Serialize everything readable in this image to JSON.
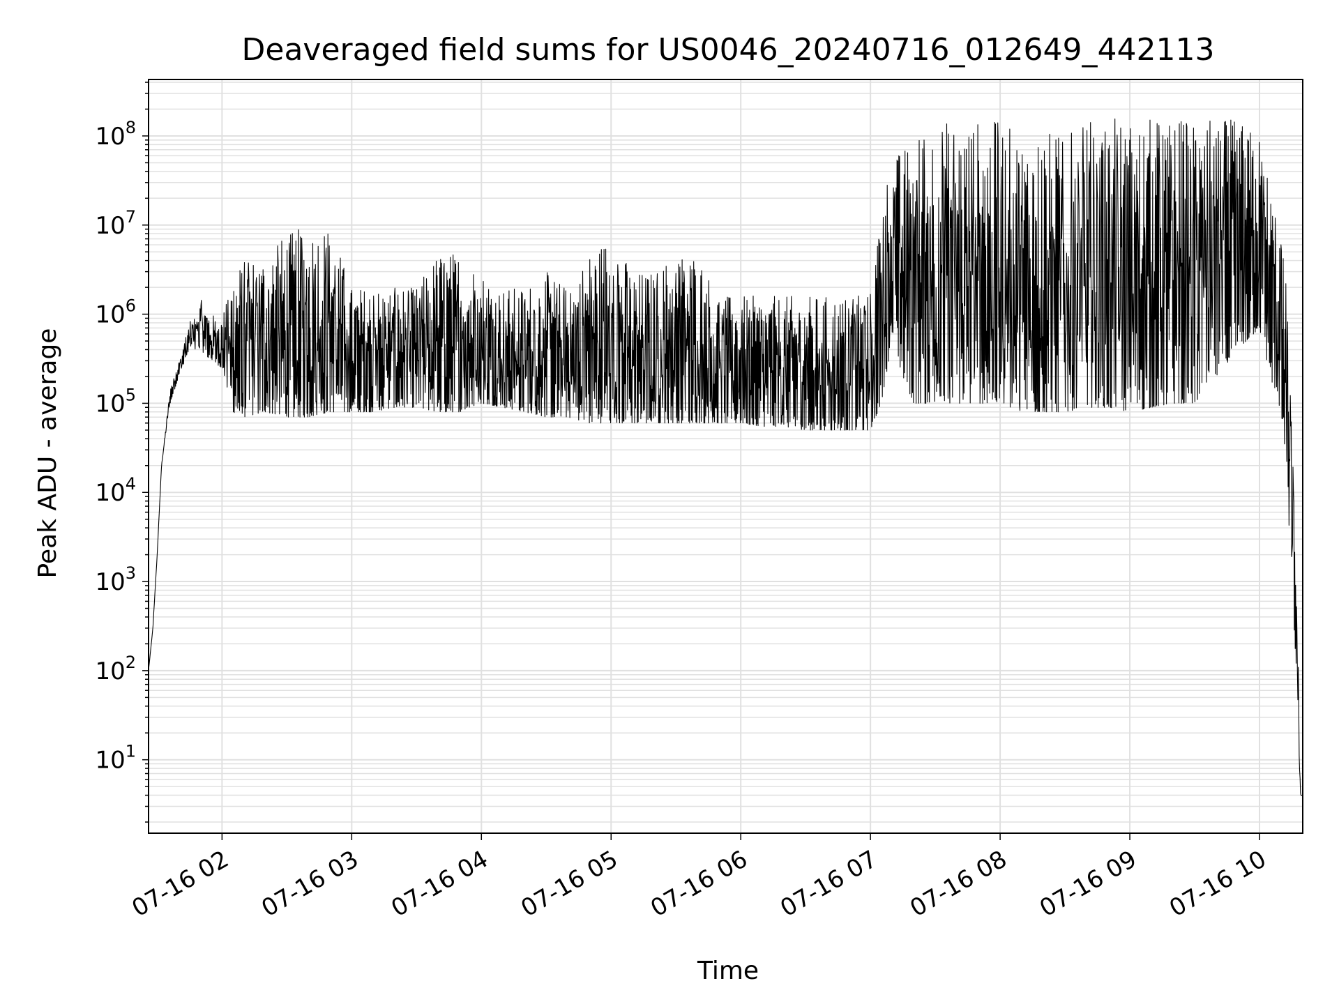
{
  "chart_data": {
    "type": "line",
    "title": "Deaveraged field sums for US0046_20240716_012649_442113",
    "xlabel": "Time",
    "ylabel": "Peak ADU - average",
    "x_scale": "time",
    "y_scale": "log",
    "xlim": [
      "07-16 01:26",
      "07-16 10:20"
    ],
    "ylim": [
      1.5,
      430000000
    ],
    "grid": true,
    "x_ticks": [
      "07-16 02",
      "07-16 03",
      "07-16 04",
      "07-16 05",
      "07-16 06",
      "07-16 07",
      "07-16 08",
      "07-16 09",
      "07-16 10"
    ],
    "y_ticks": [
      {
        "base": "10",
        "exp": "1",
        "value": 10
      },
      {
        "base": "10",
        "exp": "2",
        "value": 100
      },
      {
        "base": "10",
        "exp": "3",
        "value": 1000
      },
      {
        "base": "10",
        "exp": "4",
        "value": 10000
      },
      {
        "base": "10",
        "exp": "5",
        "value": 100000
      },
      {
        "base": "10",
        "exp": "6",
        "value": 1000000
      },
      {
        "base": "10",
        "exp": "7",
        "value": 10000000
      },
      {
        "base": "10",
        "exp": "8",
        "value": 100000000
      }
    ],
    "line_color": "#000000",
    "grid_color": "#e0e0e0",
    "series": [
      {
        "x": [
          "07-16 01:26",
          "07-16 01:28",
          "07-16 01:30",
          "07-16 01:32",
          "07-16 01:36",
          "07-16 01:40",
          "07-16 01:45",
          "07-16 01:50",
          "07-16 01:55",
          "07-16 02:00",
          "07-16 02:05",
          "07-16 02:10",
          "07-16 02:20",
          "07-16 02:30",
          "07-16 02:40",
          "07-16 02:50",
          "07-16 03:00",
          "07-16 03:10",
          "07-16 03:20",
          "07-16 03:30",
          "07-16 03:40",
          "07-16 03:50",
          "07-16 04:00",
          "07-16 04:10",
          "07-16 04:20",
          "07-16 04:30",
          "07-16 04:40",
          "07-16 04:50",
          "07-16 05:00",
          "07-16 05:10",
          "07-16 05:20",
          "07-16 05:30",
          "07-16 05:40",
          "07-16 05:50",
          "07-16 06:00",
          "07-16 06:10",
          "07-16 06:20",
          "07-16 06:30",
          "07-16 06:40",
          "07-16 06:50",
          "07-16 07:00",
          "07-16 07:05",
          "07-16 07:10",
          "07-16 07:15",
          "07-16 07:20",
          "07-16 07:30",
          "07-16 07:40",
          "07-16 07:50",
          "07-16 08:00",
          "07-16 08:10",
          "07-16 08:20",
          "07-16 08:30",
          "07-16 08:40",
          "07-16 08:50",
          "07-16 09:00",
          "07-16 09:10",
          "07-16 09:20",
          "07-16 09:30",
          "07-16 09:40",
          "07-16 09:50",
          "07-16 10:00",
          "07-16 10:05",
          "07-16 10:10",
          "07-16 10:13",
          "07-16 10:15",
          "07-16 10:17",
          "07-16 10:18",
          "07-16 10:19",
          "07-16 10:20"
        ],
        "low": [
          100,
          300,
          2000,
          20000,
          100000,
          200000,
          400000,
          400000,
          300000,
          250000,
          80000,
          70000,
          80000,
          70000,
          70000,
          80000,
          80000,
          80000,
          90000,
          90000,
          80000,
          80000,
          100000,
          90000,
          80000,
          70000,
          70000,
          60000,
          60000,
          60000,
          60000,
          60000,
          60000,
          60000,
          60000,
          55000,
          55000,
          50000,
          50000,
          50000,
          50000,
          100000,
          500000,
          200000,
          100000,
          100000,
          100000,
          100000,
          100000,
          80000,
          80000,
          80000,
          90000,
          90000,
          80000,
          90000,
          100000,
          100000,
          200000,
          400000,
          700000,
          200000,
          80000,
          8000,
          1000,
          100,
          10,
          4,
          4
        ],
        "high": [
          100,
          300,
          2000,
          20000,
          150000,
          300000,
          800000,
          1500000,
          1000000,
          900000,
          3000000,
          4000000,
          5000000,
          8000000,
          10000000,
          10000000,
          2000000,
          2000000,
          2000000,
          2000000,
          5000000,
          5000000,
          3000000,
          2000000,
          2000000,
          3000000,
          2000000,
          5000000,
          8000000,
          3000000,
          3000000,
          5000000,
          5000000,
          1600000,
          1600000,
          1600000,
          1600000,
          1600000,
          1600000,
          1600000,
          1800000,
          20000000,
          60000000,
          70000000,
          100000000,
          150000000,
          150000000,
          150000000,
          150000000,
          100000000,
          120000000,
          100000000,
          150000000,
          160000000,
          150000000,
          160000000,
          160000000,
          160000000,
          160000000,
          150000000,
          100000000,
          30000000,
          8000000,
          1500000,
          50000,
          1500,
          100,
          4,
          4
        ]
      }
    ]
  }
}
